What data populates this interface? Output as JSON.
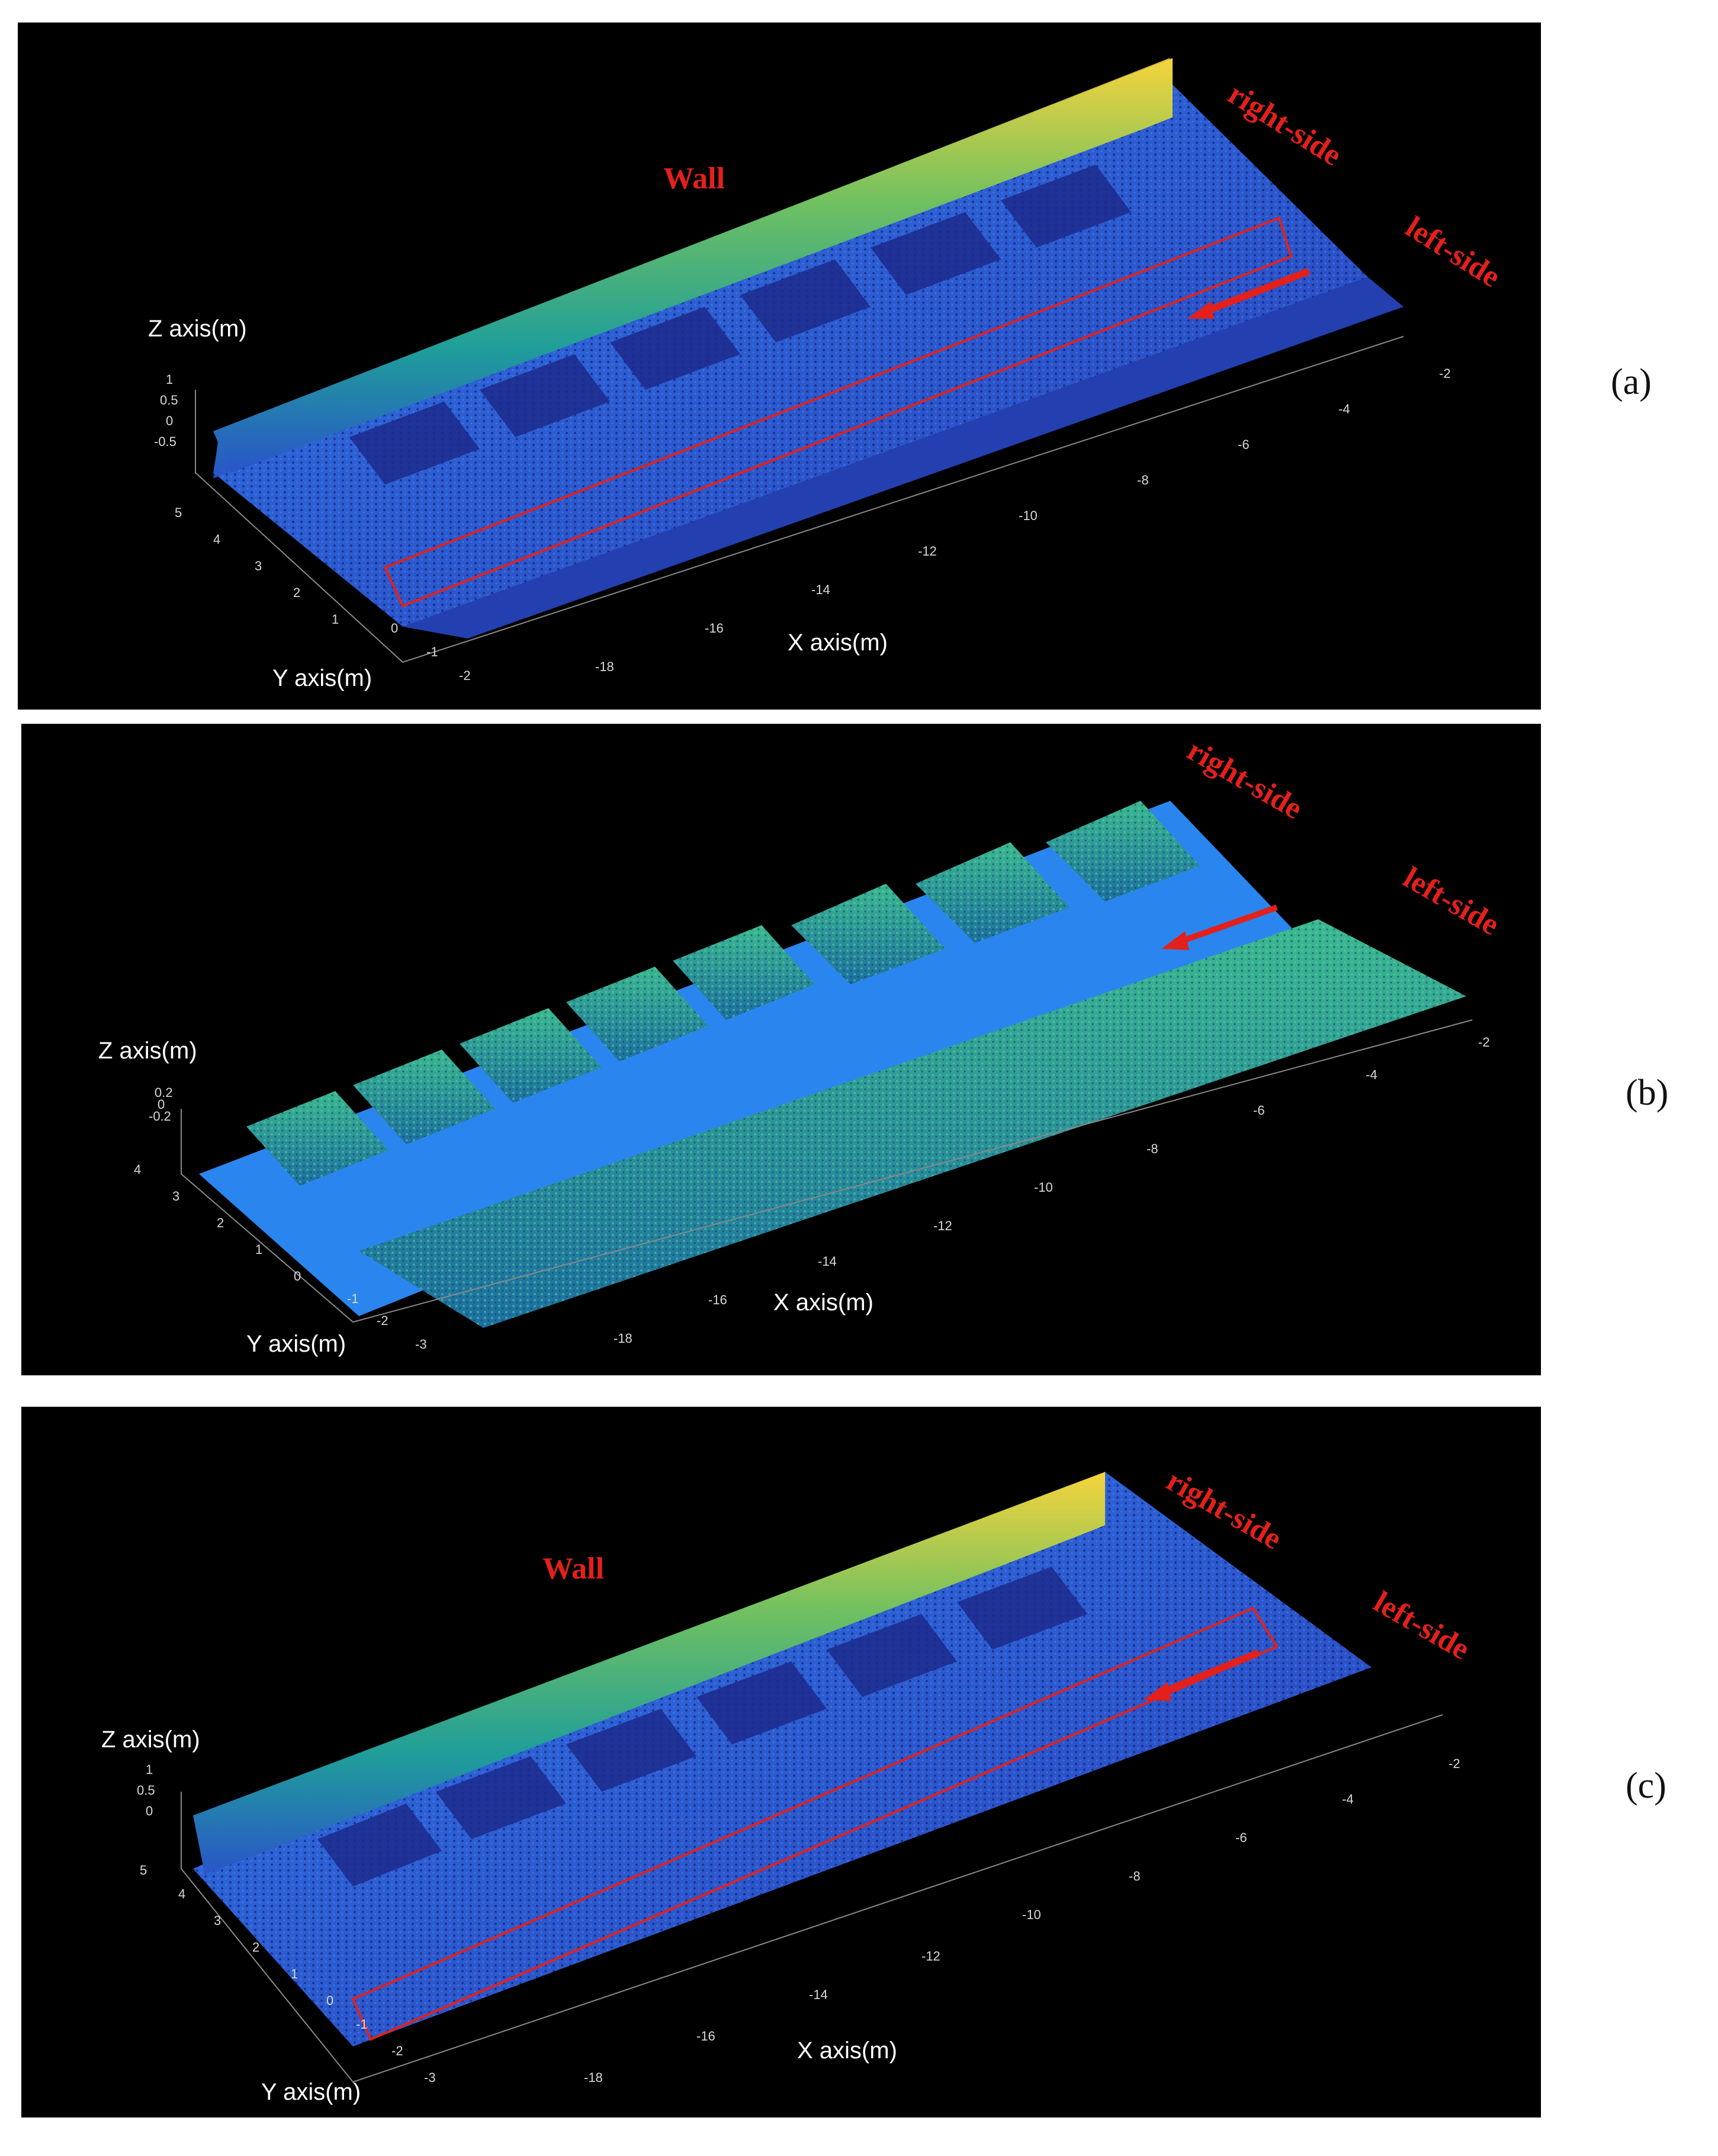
{
  "panels": [
    {
      "label": "(a)",
      "annotations": {
        "wall": "Wall",
        "right_side": "right-side",
        "left_side": "left-side"
      },
      "axes": {
        "x": "X axis(m)",
        "y": "Y axis(m)",
        "z": "Z axis(m)"
      },
      "x_ticks": [
        "-2",
        "-4",
        "-6",
        "-8",
        "-10",
        "-12",
        "-14",
        "-16",
        "-18"
      ],
      "y_ticks": [
        "5",
        "4",
        "3",
        "2",
        "1",
        "0",
        "-1",
        "-2"
      ],
      "z_ticks": [
        "1",
        "0.5",
        "0",
        "-0.5"
      ],
      "has_wall": true,
      "has_box": true
    },
    {
      "label": "(b)",
      "annotations": {
        "right_side": "right-side",
        "left_side": "left-side"
      },
      "axes": {
        "x": "X axis(m)",
        "y": "Y axis(m)",
        "z": "Z axis(m)"
      },
      "x_ticks": [
        "-2",
        "-4",
        "-6",
        "-8",
        "-10",
        "-12",
        "-14",
        "-16",
        "-18"
      ],
      "y_ticks": [
        "4",
        "3",
        "2",
        "1",
        "0",
        "-1",
        "-2",
        "-3"
      ],
      "z_ticks": [
        "0.2",
        "0",
        "-0.2"
      ],
      "has_wall": false,
      "has_box": false
    },
    {
      "label": "(c)",
      "annotations": {
        "wall": "Wall",
        "right_side": "right-side",
        "left_side": "left-side"
      },
      "axes": {
        "x": "X axis(m)",
        "y": "Y axis(m)",
        "z": "Z axis(m)"
      },
      "x_ticks": [
        "-2",
        "-4",
        "-6",
        "-8",
        "-10",
        "-12",
        "-14",
        "-16",
        "-18"
      ],
      "y_ticks": [
        "5",
        "4",
        "3",
        "2",
        "1",
        "0",
        "-1",
        "-2",
        "-3"
      ],
      "z_ticks": [
        "1",
        "0.5",
        "0"
      ],
      "has_wall": true,
      "has_box": true
    }
  ],
  "colors": {
    "background": "#000000",
    "annotation": "#e3201b",
    "floor_blue": "#2f6fe0",
    "floor_dark": "#1c2a8a",
    "wall_top": "#f3d03a",
    "wall_mid": "#1fa29a",
    "vegetation": "#1f9a8a"
  }
}
